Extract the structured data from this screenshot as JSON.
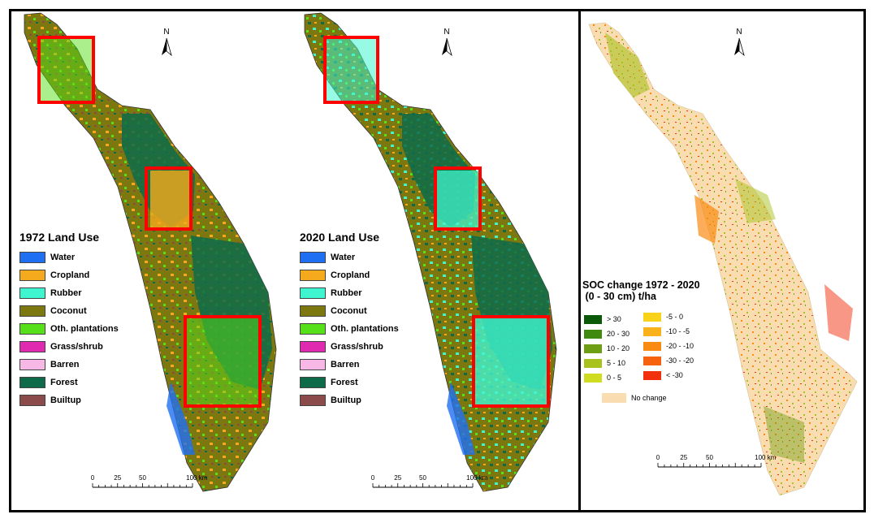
{
  "colors": {
    "water": "#1f6ff2",
    "cropland": "#f5a91c",
    "rubber": "#3ff5cf",
    "coconut": "#7d7710",
    "oth_plantations": "#55e01a",
    "grass_shrub": "#e02ab0",
    "barren": "#f7b8e6",
    "forest": "#0d6b4a",
    "builtup": "#8b4b4b",
    "no_change": "#f9ddb0",
    "highlight_box": "#ff0000"
  },
  "map1972": {
    "legend_title": "1972 Land Use",
    "legend": [
      {
        "label": "Water",
        "color": "#1f6ff2"
      },
      {
        "label": "Cropland",
        "color": "#f5a91c"
      },
      {
        "label": "Rubber",
        "color": "#3ff5cf"
      },
      {
        "label": "Coconut",
        "color": "#7d7710"
      },
      {
        "label": "Oth. plantations",
        "color": "#55e01a"
      },
      {
        "label": "Grass/shrub",
        "color": "#e02ab0"
      },
      {
        "label": "Barren",
        "color": "#f7b8e6"
      },
      {
        "label": "Forest",
        "color": "#0d6b4a"
      },
      {
        "label": "Builtup",
        "color": "#8b4b4b"
      }
    ],
    "north": "N",
    "scale": {
      "ticks": [
        "0",
        "25",
        "50",
        "100 km"
      ]
    }
  },
  "map2020": {
    "legend_title": "2020 Land Use",
    "legend": [
      {
        "label": "Water",
        "color": "#1f6ff2"
      },
      {
        "label": "Cropland",
        "color": "#f5a91c"
      },
      {
        "label": "Rubber",
        "color": "#3ff5cf"
      },
      {
        "label": "Coconut",
        "color": "#7d7710"
      },
      {
        "label": "Oth. plantations",
        "color": "#55e01a"
      },
      {
        "label": "Grass/shrub",
        "color": "#e02ab0"
      },
      {
        "label": "Barren",
        "color": "#f7b8e6"
      },
      {
        "label": "Forest",
        "color": "#0d6b4a"
      },
      {
        "label": "Builtup",
        "color": "#8b4b4b"
      }
    ],
    "north": "N",
    "scale": {
      "ticks": [
        "0",
        "25",
        "50",
        "100 km"
      ]
    }
  },
  "soc_map": {
    "title_line1": "SOC change 1972 - 2020",
    "title_line2": " (0 - 30 cm) t/ha",
    "gain": [
      {
        "label": "> 30",
        "color": "#0a5a0a"
      },
      {
        "label": "20 - 30",
        "color": "#3f8a0f"
      },
      {
        "label": "10 - 20",
        "color": "#6e9e14"
      },
      {
        "label": "5 - 10",
        "color": "#a9c21e"
      },
      {
        "label": "0 - 5",
        "color": "#cfdc22"
      }
    ],
    "loss": [
      {
        "label": "-5 - 0",
        "color": "#f9d31a"
      },
      {
        "label": "-10 - -5",
        "color": "#f9b21a"
      },
      {
        "label": "-20 - -10",
        "color": "#f98a12"
      },
      {
        "label": "-30 - -20",
        "color": "#f7620e"
      },
      {
        "label": "< -30",
        "color": "#f2300e"
      }
    ],
    "no_change_label": "No change",
    "north": "N",
    "scale": {
      "ticks": [
        "0",
        "25",
        "50",
        "100 km"
      ]
    }
  }
}
